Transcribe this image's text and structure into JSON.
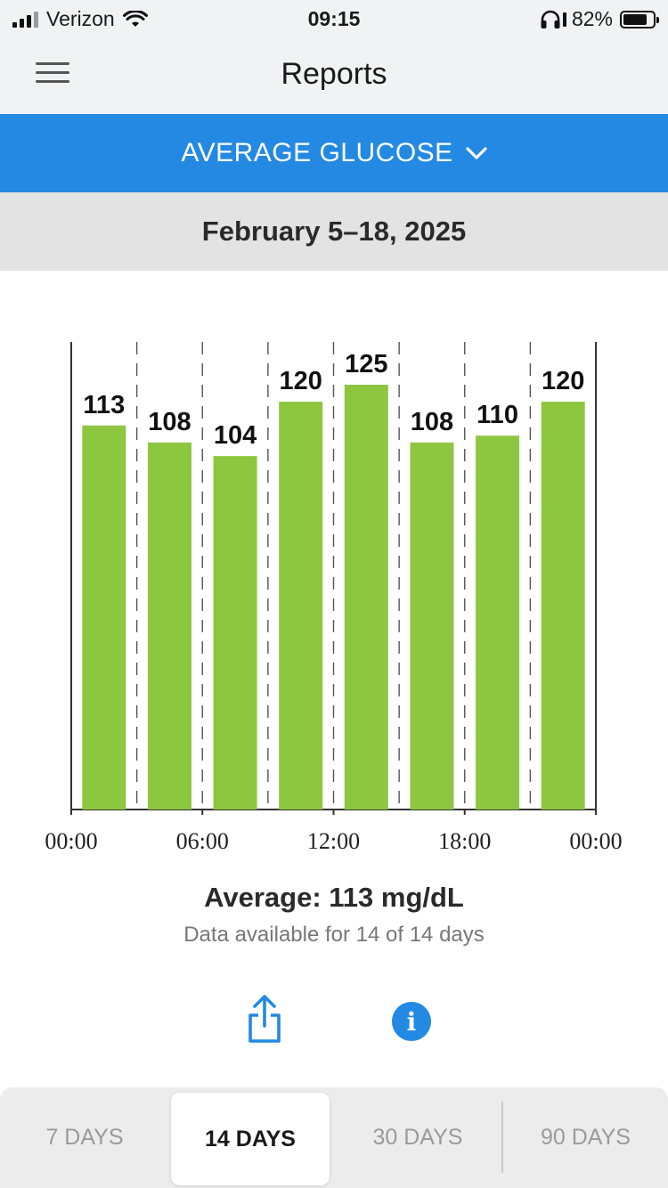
{
  "status_bar": {
    "carrier": "Verizon",
    "time": "09:15",
    "battery": "82%",
    "battery_level": 0.82
  },
  "nav": {
    "title": "Reports",
    "menu_icon": "hamburger-menu-icon"
  },
  "report_selector": {
    "label": "AVERAGE GLUCOSE",
    "icon": "chevron-down-icon"
  },
  "date_range": "February 5–18, 2025",
  "chart_data": {
    "type": "bar",
    "title": "",
    "xlabel": "",
    "ylabel": "",
    "values": [
      113,
      108,
      104,
      120,
      125,
      108,
      110,
      120
    ],
    "data_labels": [
      "113",
      "108",
      "104",
      "120",
      "125",
      "108",
      "110",
      "120"
    ],
    "x_ticks": [
      "00:00",
      "06:00",
      "12:00",
      "18:00",
      "00:00"
    ],
    "bar_color": "#8dc63f",
    "grid": "dashed vertical"
  },
  "summary": {
    "average": "Average: 113 mg/dL",
    "availability": "Data available for 14 of 14 days"
  },
  "actions": {
    "share_icon": "share-icon",
    "info_icon": "info-icon",
    "info_glyph": "i"
  },
  "periods": [
    {
      "label": "7 DAYS",
      "selected": false
    },
    {
      "label": "14 DAYS",
      "selected": true
    },
    {
      "label": "30 DAYS",
      "selected": false
    },
    {
      "label": "90 DAYS",
      "selected": false
    }
  ],
  "colors": {
    "accent": "#2389e3",
    "bar": "#8dc63f"
  }
}
